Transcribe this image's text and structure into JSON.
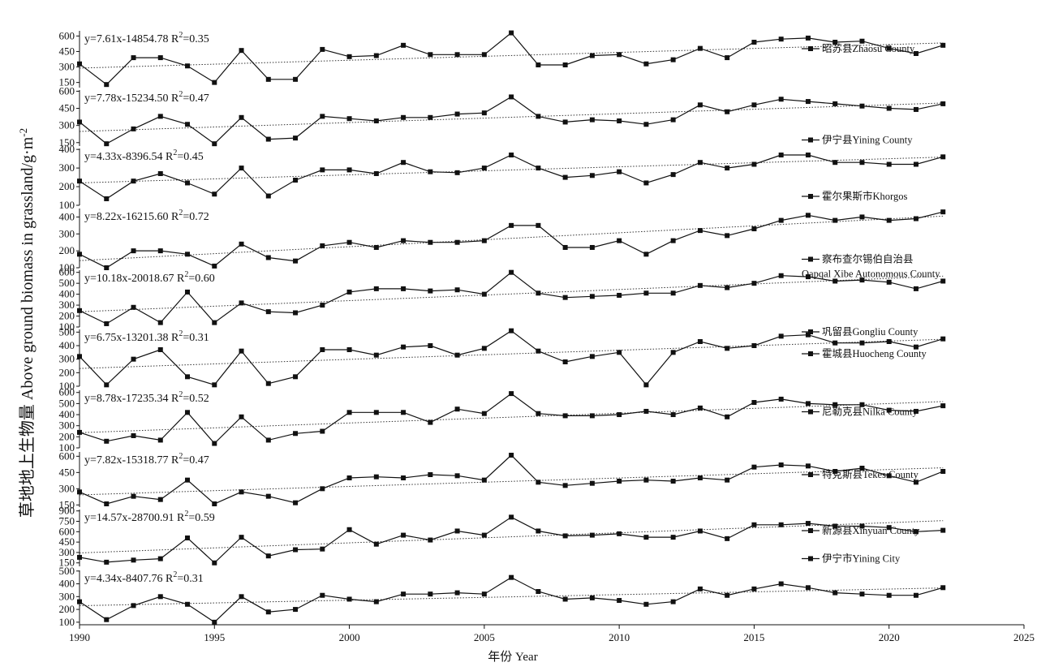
{
  "chart_data": {
    "type": "line",
    "xlabel": "年份 Year",
    "ylabel": "草地地上生物量 Above ground biomass in grassland/g·m",
    "ylabel_sup": "-2",
    "x_ticks": [
      1990,
      1995,
      2000,
      2005,
      2010,
      2015,
      2020,
      2025
    ],
    "xlim": [
      1990,
      2025
    ],
    "years": [
      1990,
      1991,
      1992,
      1993,
      1994,
      1995,
      1996,
      1997,
      1998,
      1999,
      2000,
      2001,
      2002,
      2003,
      2004,
      2005,
      2006,
      2007,
      2008,
      2009,
      2010,
      2011,
      2012,
      2013,
      2014,
      2015,
      2016,
      2017,
      2018,
      2019,
      2020,
      2021,
      2022
    ],
    "panels": [
      {
        "legend": "昭苏县Zhaosu County",
        "eq_left": "y=7.61x-14854.78  R",
        "eq_sup": "2",
        "eq_right": "=0.35",
        "slope": 7.61,
        "intercept": -14854.78,
        "ylim": [
          100,
          650
        ],
        "yticks": [
          150,
          300,
          450,
          600
        ],
        "values": [
          330,
          130,
          390,
          390,
          310,
          150,
          460,
          180,
          180,
          470,
          400,
          410,
          510,
          420,
          420,
          420,
          630,
          320,
          320,
          410,
          420,
          330,
          370,
          480,
          390,
          540,
          570,
          580,
          540,
          550,
          480,
          430,
          510
        ]
      },
      {
        "legend": "伊宁县Yining County",
        "eq_left": "y=7.78x-15234.50  R",
        "eq_sup": "2",
        "eq_right": "=0.47",
        "slope": 7.78,
        "intercept": -15234.5,
        "ylim": [
          120,
          610
        ],
        "yticks": [
          150,
          300,
          450,
          600
        ],
        "values": [
          330,
          140,
          270,
          380,
          310,
          140,
          370,
          180,
          190,
          380,
          360,
          340,
          370,
          370,
          400,
          410,
          550,
          380,
          330,
          350,
          340,
          310,
          350,
          480,
          420,
          480,
          530,
          510,
          490,
          470,
          450,
          440,
          490
        ]
      },
      {
        "legend": "霍尔果斯市Khorgos",
        "eq_left": "y=4.33x-8396.54  R",
        "eq_sup": "2",
        "eq_right": "=0.45",
        "slope": 4.33,
        "intercept": -8396.54,
        "ylim": [
          100,
          405
        ],
        "yticks": [
          100,
          200,
          300,
          400
        ],
        "values": [
          230,
          135,
          230,
          270,
          220,
          160,
          300,
          150,
          235,
          290,
          290,
          270,
          330,
          280,
          275,
          300,
          370,
          300,
          250,
          260,
          280,
          220,
          265,
          330,
          300,
          320,
          370,
          370,
          330,
          330,
          320,
          320,
          360
        ]
      },
      {
        "legend": "察布查尔锡伯自治县",
        "legend2": "Qapqal Xibe Autonomous County",
        "eq_left": "y=8.22x-16215.60  R",
        "eq_sup": "2",
        "eq_right": "=0.72",
        "slope": 8.22,
        "intercept": -16215.6,
        "ylim": [
          100,
          450
        ],
        "yticks": [
          100,
          200,
          300,
          400
        ],
        "values": [
          180,
          100,
          200,
          200,
          180,
          110,
          240,
          160,
          140,
          230,
          250,
          220,
          260,
          250,
          250,
          260,
          350,
          350,
          220,
          220,
          260,
          180,
          260,
          320,
          290,
          330,
          380,
          410,
          380,
          400,
          380,
          390,
          430
        ]
      },
      {
        "legend": "巩留县Gongliu County",
        "eq_left": "y=10.18x-20018.67  R",
        "eq_sup": "2",
        "eq_right": "=0.60",
        "slope": 10.18,
        "intercept": -20018.67,
        "ylim": [
          100,
          620
        ],
        "yticks": [
          100,
          200,
          300,
          400,
          500,
          600
        ],
        "values": [
          250,
          130,
          280,
          140,
          420,
          140,
          320,
          240,
          230,
          300,
          420,
          450,
          450,
          430,
          440,
          400,
          600,
          410,
          370,
          380,
          390,
          410,
          410,
          480,
          460,
          500,
          570,
          560,
          520,
          530,
          510,
          450,
          520
        ]
      },
      {
        "legend": "霍城县Huocheng County",
        "eq_left": "y=6.75x-13201.38  R",
        "eq_sup": "2",
        "eq_right": "=0.31",
        "slope": 6.75,
        "intercept": -13201.38,
        "ylim": [
          100,
          520
        ],
        "yticks": [
          100,
          200,
          300,
          400,
          500
        ],
        "values": [
          320,
          110,
          300,
          370,
          170,
          110,
          360,
          120,
          170,
          370,
          370,
          330,
          390,
          400,
          330,
          380,
          510,
          360,
          280,
          320,
          350,
          110,
          350,
          430,
          380,
          400,
          470,
          480,
          420,
          420,
          430,
          390,
          450
        ]
      },
      {
        "legend": "尼勒克县Nilka County",
        "eq_left": "y=8.78x-17235.34  R",
        "eq_sup": "2",
        "eq_right": "=0.52",
        "slope": 8.78,
        "intercept": -17235.34,
        "ylim": [
          100,
          620
        ],
        "yticks": [
          100,
          200,
          300,
          400,
          500,
          600
        ],
        "values": [
          240,
          160,
          210,
          170,
          420,
          140,
          380,
          170,
          230,
          250,
          420,
          420,
          420,
          330,
          450,
          410,
          590,
          410,
          390,
          390,
          400,
          430,
          400,
          460,
          380,
          510,
          540,
          500,
          490,
          490,
          440,
          430,
          480
        ]
      },
      {
        "legend": "特克斯县Tekes County",
        "eq_left": "y=7.82x-15318.77  R",
        "eq_sup": "2",
        "eq_right": "=0.47",
        "slope": 7.82,
        "intercept": -15318.77,
        "ylim": [
          130,
          640
        ],
        "yticks": [
          150,
          300,
          450,
          600
        ],
        "values": [
          270,
          160,
          230,
          200,
          380,
          160,
          270,
          230,
          170,
          300,
          400,
          410,
          400,
          430,
          420,
          380,
          610,
          360,
          330,
          350,
          370,
          380,
          370,
          400,
          380,
          500,
          520,
          510,
          460,
          490,
          420,
          360,
          460
        ]
      },
      {
        "legend": "新源县Xinyuan County",
        "eq_left": "y=14.57x-28700.91  R",
        "eq_sup": "2",
        "eq_right": "=0.59",
        "slope": 14.57,
        "intercept": -28700.91,
        "ylim": [
          100,
          920
        ],
        "yticks": [
          150,
          300,
          450,
          600,
          750,
          900
        ],
        "values": [
          230,
          160,
          190,
          210,
          510,
          150,
          520,
          250,
          340,
          350,
          630,
          420,
          550,
          480,
          610,
          550,
          810,
          610,
          540,
          550,
          570,
          520,
          520,
          610,
          500,
          700,
          700,
          720,
          680,
          680,
          660,
          600,
          620
        ]
      },
      {
        "legend": "伊宁市Yining City",
        "eq_left": "y=4.34x-8407.76  R",
        "eq_sup": "2",
        "eq_right": "=0.31",
        "slope": 4.34,
        "intercept": -8407.76,
        "ylim": [
          80,
          505
        ],
        "yticks": [
          100,
          200,
          300,
          400,
          500
        ],
        "values": [
          260,
          120,
          230,
          300,
          240,
          100,
          300,
          180,
          200,
          310,
          280,
          260,
          320,
          320,
          330,
          320,
          450,
          340,
          280,
          290,
          270,
          240,
          260,
          360,
          310,
          360,
          400,
          370,
          330,
          320,
          310,
          310,
          370
        ]
      }
    ]
  }
}
